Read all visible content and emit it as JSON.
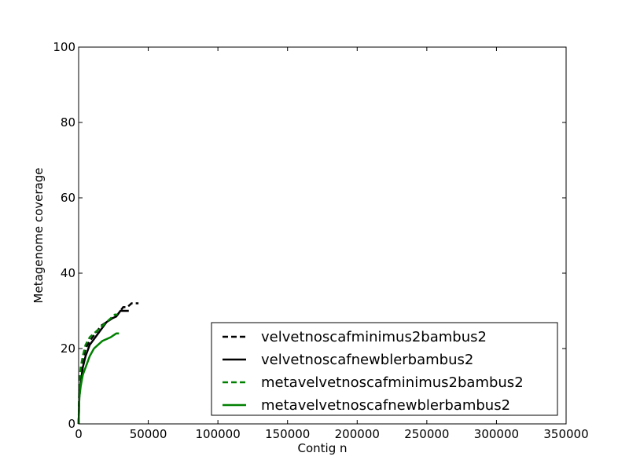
{
  "chart_data": {
    "type": "line",
    "title": "",
    "xlabel": "Contig n",
    "ylabel": "Metagenome coverage",
    "xlim": [
      0,
      350000
    ],
    "ylim": [
      0,
      100
    ],
    "xticks": [
      0,
      50000,
      100000,
      150000,
      200000,
      250000,
      300000,
      350000
    ],
    "xtick_labels": [
      "0",
      "50000",
      "100000",
      "150000",
      "200000",
      "250000",
      "300000",
      "350000"
    ],
    "yticks": [
      0,
      20,
      40,
      60,
      80,
      100
    ],
    "ytick_labels": [
      "0",
      "20",
      "40",
      "60",
      "80",
      "100"
    ],
    "grid": false,
    "legend_position": "lower-right",
    "series": [
      {
        "name": "velvetnoscafminimus2bambus2",
        "color": "#000000",
        "dash": "dashed",
        "x": [
          0,
          500,
          1500,
          3000,
          5000,
          8000,
          12000,
          16000,
          20000,
          24000,
          28000,
          30000,
          32000,
          35000,
          38000,
          40000,
          43000
        ],
        "y": [
          0,
          9,
          14,
          17,
          20,
          22,
          24,
          26,
          27,
          28,
          29,
          30,
          31,
          31,
          32,
          32,
          32
        ]
      },
      {
        "name": "velvetnoscafnewblerbambus2",
        "color": "#000000",
        "dash": "solid",
        "x": [
          0,
          500,
          1500,
          3000,
          5000,
          8000,
          12000,
          16000,
          20000,
          24000,
          27000,
          30000,
          33000,
          36000
        ],
        "y": [
          0,
          7,
          11,
          15,
          18,
          21,
          23,
          25,
          27,
          28,
          28.5,
          30,
          30,
          30
        ]
      },
      {
        "name": "metavelvetnoscafminimus2bambus2",
        "color": "#008000",
        "dash": "dashed",
        "x": [
          0,
          500,
          1500,
          3000,
          5000,
          8000,
          11000,
          14000,
          17000,
          20000,
          23000,
          26000,
          28000
        ],
        "y": [
          0,
          11,
          15,
          18,
          21,
          23,
          24,
          25,
          26,
          27,
          28,
          29,
          29
        ]
      },
      {
        "name": "metavelvetnoscafnewblerbambus2",
        "color": "#008000",
        "dash": "solid",
        "x": [
          0,
          500,
          1500,
          3000,
          5000,
          8000,
          11000,
          14000,
          17000,
          20000,
          23000,
          25000,
          27000,
          29000
        ],
        "y": [
          0,
          7,
          10,
          13,
          15,
          18,
          20,
          21,
          22,
          22.5,
          23,
          23.5,
          24,
          24
        ]
      }
    ]
  }
}
